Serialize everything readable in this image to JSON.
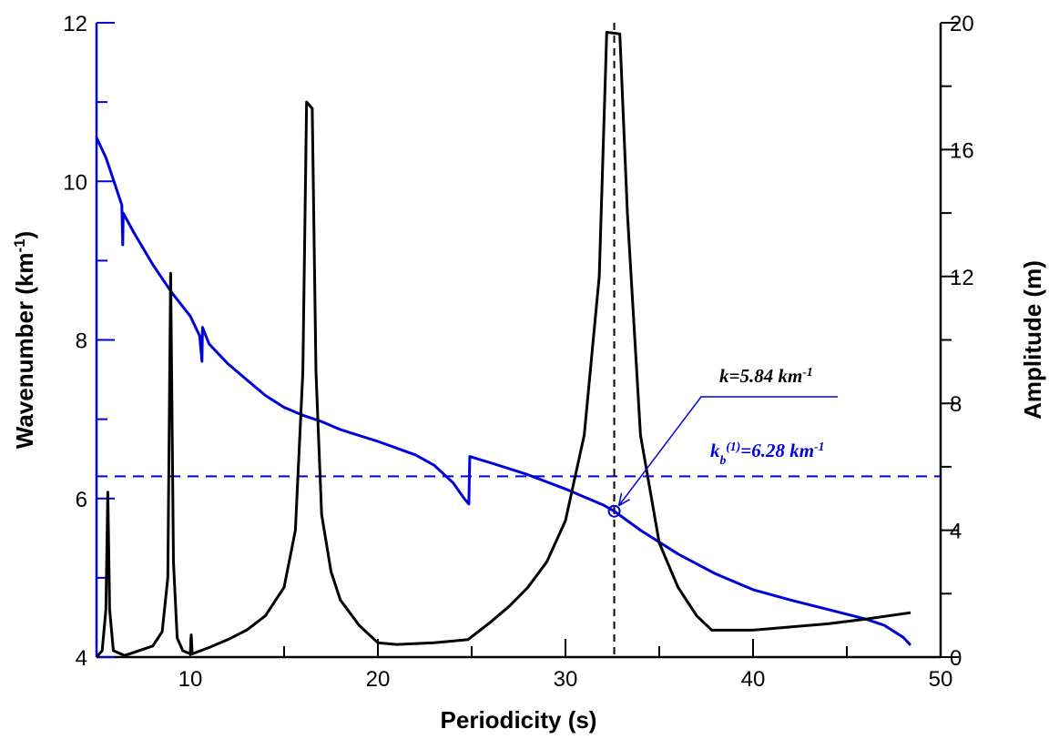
{
  "chart_data": {
    "type": "line",
    "x_label": "Periodicity (s)",
    "y_label": [
      {
        "text": "Wavenumber (km"
      },
      {
        "text": "-1",
        "shift": "super"
      },
      {
        "text": ")"
      }
    ],
    "y2_label": "Amplitude (m)",
    "xlim": [
      5,
      50
    ],
    "xticks": [
      10,
      20,
      30,
      40,
      50
    ],
    "ylim": [
      4,
      12
    ],
    "yticks": [
      4,
      6,
      8,
      10,
      12
    ],
    "y2lim": [
      0,
      20
    ],
    "y2ticks": [
      0,
      4,
      8,
      12,
      16,
      20
    ],
    "minor_ticks": true,
    "series": [
      {
        "color": "#0000dd",
        "axis": "y",
        "x": [
          5,
          5.5,
          6.0,
          6.35,
          6.4,
          6.42,
          7,
          8,
          9,
          10,
          10.5,
          10.62,
          10.65,
          11,
          12,
          13,
          14,
          15,
          16,
          17,
          18,
          20,
          22,
          23,
          24,
          24.6,
          24.85,
          24.9,
          26,
          28,
          30,
          32,
          32.6,
          34,
          36,
          38,
          40,
          42,
          44,
          46,
          47,
          48,
          48.4
        ],
        "values": [
          10.55,
          10.3,
          9.95,
          9.7,
          9.2,
          9.6,
          9.35,
          8.95,
          8.6,
          8.3,
          8.05,
          7.73,
          8.16,
          7.95,
          7.7,
          7.5,
          7.3,
          7.15,
          7.05,
          6.97,
          6.87,
          6.72,
          6.55,
          6.42,
          6.2,
          6.0,
          5.93,
          6.53,
          6.45,
          6.3,
          6.12,
          5.92,
          5.84,
          5.6,
          5.3,
          5.05,
          4.85,
          4.72,
          4.6,
          4.48,
          4.4,
          4.25,
          4.15
        ]
      },
      {
        "color": "#000000",
        "axis": "y2",
        "x": [
          5,
          5.3,
          5.5,
          5.6,
          5.7,
          5.9,
          6.5,
          7,
          8,
          8.5,
          8.8,
          8.95,
          9.1,
          9.3,
          9.6,
          10,
          10.05,
          10.1,
          11,
          12,
          13,
          14,
          15,
          15.6,
          16,
          16.2,
          16.5,
          16.7,
          17,
          17.5,
          18,
          19,
          20,
          21,
          23,
          24.8,
          26,
          27,
          28,
          29,
          30,
          31,
          31.8,
          32.2,
          32.9,
          33.3,
          34,
          35,
          36,
          37,
          37.8,
          40,
          42,
          44,
          46,
          48.4
        ],
        "values": [
          0,
          0.2,
          1.5,
          5.2,
          1.5,
          0.2,
          0.05,
          0.15,
          0.35,
          0.8,
          2.5,
          12.1,
          3,
          0.6,
          0.2,
          0.1,
          0.7,
          0.1,
          0.3,
          0.55,
          0.85,
          1.3,
          2.2,
          4,
          9,
          17.5,
          17.3,
          9,
          4.5,
          2.7,
          1.8,
          1,
          0.45,
          0.4,
          0.45,
          0.55,
          1.1,
          1.6,
          2.2,
          3,
          4.3,
          7,
          12,
          19.7,
          19.65,
          14,
          7,
          3.6,
          2.2,
          1.3,
          0.85,
          0.85,
          0.95,
          1.05,
          1.2,
          1.4
        ]
      }
    ],
    "hline": {
      "value": 6.28,
      "color": "#0000dd",
      "axis": "y"
    },
    "vline": {
      "value": 32.6,
      "color": "#000000"
    },
    "point": {
      "x": 32.6,
      "y": 5.84,
      "color": "#0000dd"
    },
    "annotations": [
      {
        "color": "#000000",
        "parts": [
          {
            "text": "k=5.84 km"
          },
          {
            "text": "-1",
            "shift": "super"
          }
        ]
      },
      {
        "color": "#0000dd",
        "parts": [
          {
            "text": "k"
          },
          {
            "text": "b",
            "shift": "sub"
          },
          {
            "text": "(1)",
            "shift": "super"
          },
          {
            "text": "=6.28 km"
          },
          {
            "text": "-1",
            "shift": "super"
          }
        ]
      }
    ]
  }
}
